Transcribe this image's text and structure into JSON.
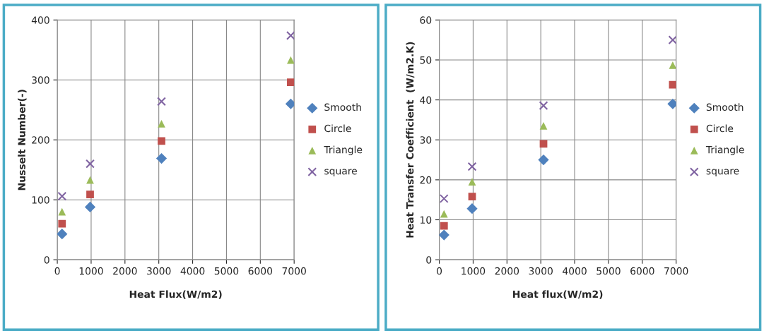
{
  "chart_data": [
    {
      "type": "scatter",
      "xlabel": "Heat Flux(W/m2)",
      "ylabel": "Nusselt Number(-)",
      "x": [
        140,
        970,
        3080,
        6900
      ],
      "xlim": [
        0,
        7000
      ],
      "xticks": [
        0,
        1000,
        2000,
        3000,
        4000,
        5000,
        6000,
        7000
      ],
      "ylim": [
        0,
        400
      ],
      "yticks": [
        0,
        100,
        200,
        300,
        400
      ],
      "grid": true,
      "legend": "right",
      "series": [
        {
          "name": "Smooth",
          "color": "#4f81bd",
          "marker": "diamond",
          "values": [
            43,
            88,
            169,
            260
          ]
        },
        {
          "name": "Circle",
          "color": "#c0504d",
          "marker": "square",
          "values": [
            60,
            109,
            198,
            296
          ]
        },
        {
          "name": "Triangle",
          "color": "#9bbb59",
          "marker": "triangle",
          "values": [
            80,
            133,
            227,
            333
          ]
        },
        {
          "name": "square",
          "color": "#8064a2",
          "marker": "cross",
          "values": [
            106,
            160,
            264,
            374
          ]
        }
      ]
    },
    {
      "type": "scatter",
      "xlabel": "Heat flux(W/m2)",
      "ylabel": "Heat Transfer Coefficient  (W/m2.K)",
      "x": [
        140,
        970,
        3080,
        6900
      ],
      "xlim": [
        0,
        7000
      ],
      "xticks": [
        0,
        1000,
        2000,
        3000,
        4000,
        5000,
        6000,
        7000
      ],
      "ylim": [
        0,
        60
      ],
      "yticks": [
        0,
        10,
        20,
        30,
        40,
        50,
        60
      ],
      "grid": true,
      "legend": "right",
      "series": [
        {
          "name": "Smooth",
          "color": "#4f81bd",
          "marker": "diamond",
          "values": [
            6.2,
            12.8,
            25,
            39
          ]
        },
        {
          "name": "Circle",
          "color": "#c0504d",
          "marker": "square",
          "values": [
            8.5,
            15.8,
            29,
            43.8
          ]
        },
        {
          "name": "Triangle",
          "color": "#9bbb59",
          "marker": "triangle",
          "values": [
            11.5,
            19.5,
            33.5,
            48.7
          ]
        },
        {
          "name": "square",
          "color": "#8064a2",
          "marker": "cross",
          "values": [
            15.3,
            23.3,
            38.6,
            55
          ]
        }
      ]
    }
  ]
}
